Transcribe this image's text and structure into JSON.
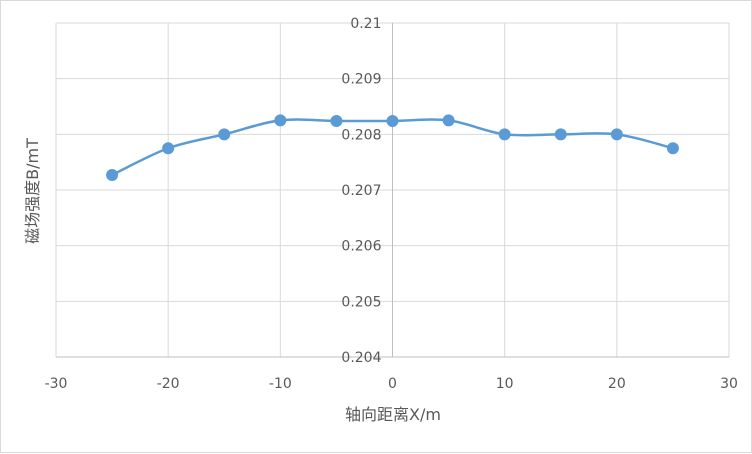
{
  "chart_data": {
    "type": "scatter",
    "title": "",
    "xlabel": "轴向距离X/m",
    "ylabel": "磁场强度B/mT",
    "xlim": [
      -30,
      30
    ],
    "ylim": [
      0.204,
      0.21
    ],
    "x_ticks": [
      -30,
      -20,
      -10,
      0,
      10,
      20,
      30
    ],
    "x_tick_labels": [
      "-30",
      "-20",
      "-10",
      "0",
      "10",
      "20",
      "30"
    ],
    "y_ticks": [
      0.204,
      0.205,
      0.206,
      0.207,
      0.208,
      0.209,
      0.21
    ],
    "y_tick_labels": [
      "0.204",
      "0.205",
      "0.206",
      "0.207",
      "0.208",
      "0.209",
      "0.21"
    ],
    "grid": true,
    "smooth": true,
    "series": [
      {
        "name": "磁场强度",
        "color": "#5b9bd5",
        "x": [
          -25,
          -20,
          -15,
          -10,
          -5,
          0,
          5,
          10,
          15,
          20,
          25
        ],
        "y": [
          0.20727,
          0.20775,
          0.208,
          0.20825,
          0.20824,
          0.20824,
          0.20825,
          0.208,
          0.208,
          0.208,
          0.20775
        ]
      }
    ]
  }
}
